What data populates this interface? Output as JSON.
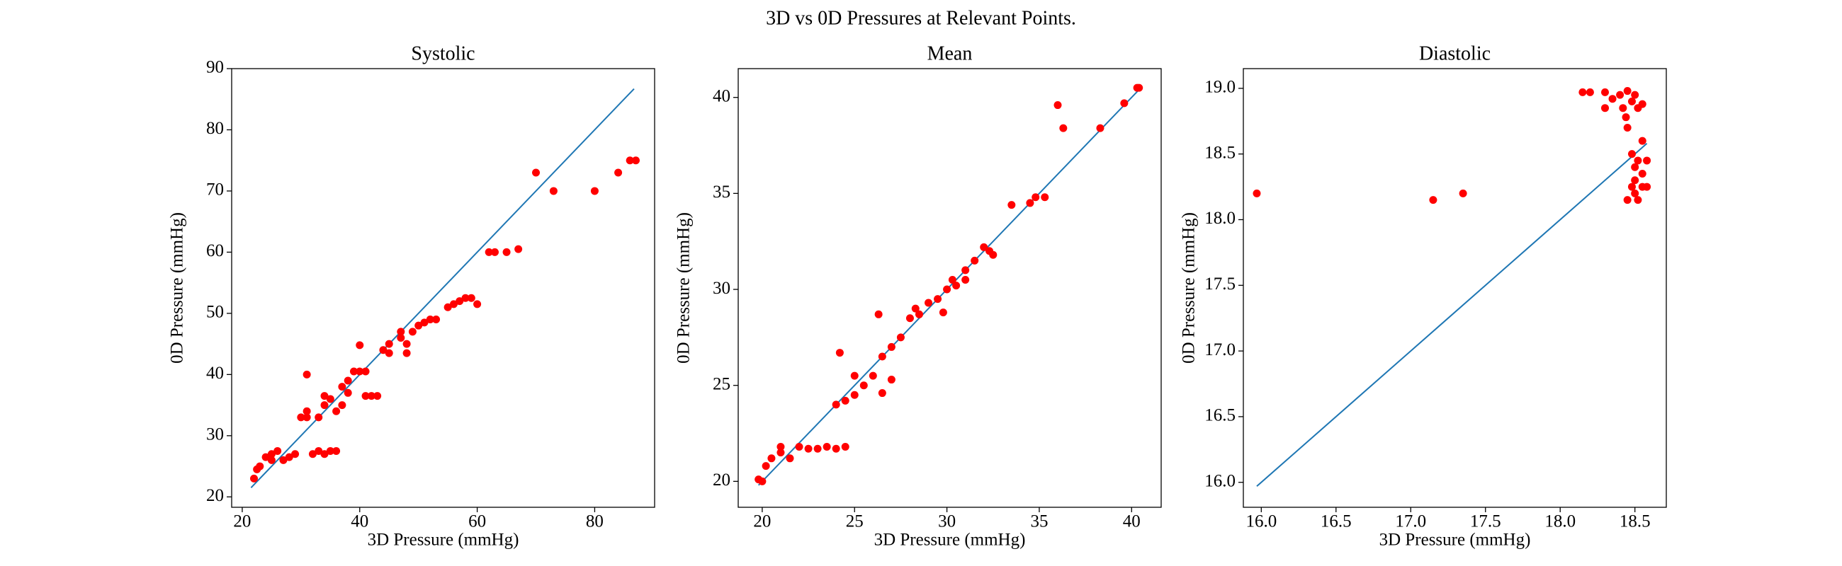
{
  "title": "3D vs 0D Pressures at Relevant Points.",
  "chart_data": [
    {
      "type": "scatter",
      "title": "Systolic",
      "x_label": "3D Pressure (mmHg)",
      "y_label": "0D Pressure (mmHg)",
      "xlim": [
        18.2,
        90.2
      ],
      "ylim": [
        18.3,
        90.0
      ],
      "xticks": [
        20,
        40,
        60,
        80
      ],
      "yticks": [
        20,
        30,
        40,
        50,
        60,
        70,
        80,
        90
      ],
      "points": {
        "color": "#ff0000",
        "x": [
          22,
          22.5,
          23,
          24,
          25,
          26,
          27,
          28,
          25,
          31,
          31,
          31,
          32,
          33,
          34,
          35,
          36,
          33,
          34,
          34,
          35,
          36,
          37,
          37,
          38,
          38,
          39,
          40,
          40,
          41,
          41,
          42,
          43,
          44,
          45,
          45,
          47,
          47,
          48,
          48,
          49,
          50,
          51,
          52,
          53,
          55,
          56,
          57,
          58,
          59,
          60,
          62,
          63,
          65,
          67,
          70,
          73,
          80,
          84,
          86,
          87,
          30,
          29
        ],
        "y": [
          23,
          24.5,
          25,
          26.5,
          27,
          27.5,
          26,
          26.5,
          26,
          40,
          33,
          34,
          27,
          27.5,
          27,
          27.5,
          27.5,
          33,
          35,
          36.5,
          36,
          34,
          35,
          38,
          39,
          37,
          40.5,
          44.8,
          40.5,
          40.5,
          36.5,
          36.5,
          36.5,
          44,
          45,
          43.5,
          46,
          47,
          45,
          43.5,
          47,
          48,
          48.5,
          49,
          49,
          51,
          51.5,
          52,
          52.5,
          52.5,
          51.5,
          60,
          60,
          60,
          60.5,
          73,
          70,
          70,
          73,
          75,
          75,
          33,
          27
        ]
      },
      "line": {
        "color": "#1f77b4",
        "x": [
          21.5,
          86.7
        ],
        "y": [
          21.5,
          86.7
        ]
      }
    },
    {
      "type": "scatter",
      "title": "Mean",
      "x_label": "3D Pressure (mmHg)",
      "y_label": "0D Pressure (mmHg)",
      "xlim": [
        18.7,
        41.6
      ],
      "ylim": [
        18.65,
        41.5
      ],
      "xticks": [
        20,
        25,
        30,
        35,
        40
      ],
      "yticks": [
        20,
        25,
        30,
        35,
        40
      ],
      "points": {
        "color": "#ff0000",
        "x": [
          19.8,
          20,
          20.2,
          20.5,
          21,
          21,
          21.5,
          22,
          22.5,
          23,
          23.5,
          24,
          24.5,
          24,
          24.2,
          24.5,
          25,
          25,
          25.5,
          26,
          26.3,
          26.5,
          26.5,
          27,
          27,
          27.5,
          28,
          28.3,
          28.5,
          29,
          29.5,
          29.8,
          30,
          30.3,
          30.5,
          31,
          31,
          31.5,
          32,
          32.3,
          32.5,
          33.5,
          34.5,
          34.8,
          35.3,
          36,
          36.3,
          38.3,
          39.6,
          40.3,
          40.4
        ],
        "y": [
          20.1,
          20,
          20.8,
          21.2,
          21.5,
          21.8,
          21.2,
          21.8,
          21.7,
          21.7,
          21.8,
          21.7,
          21.8,
          24,
          26.7,
          24.2,
          24.5,
          25.5,
          25,
          25.5,
          28.7,
          26.5,
          24.6,
          25.3,
          27,
          27.5,
          28.5,
          29,
          28.7,
          29.3,
          29.5,
          28.8,
          30,
          30.5,
          30.2,
          31,
          30.5,
          31.5,
          32.2,
          32,
          31.8,
          34.4,
          34.5,
          34.8,
          34.8,
          39.6,
          38.4,
          38.4,
          39.7,
          40.5,
          40.5
        ]
      },
      "line": {
        "color": "#1f77b4",
        "x": [
          19.8,
          40.4
        ],
        "y": [
          19.8,
          40.4
        ]
      }
    },
    {
      "type": "scatter",
      "title": "Diastolic",
      "x_label": "3D Pressure (mmHg)",
      "y_label": "0D Pressure (mmHg)",
      "xlim": [
        15.88,
        18.71
      ],
      "ylim": [
        15.81,
        19.15
      ],
      "xticks": [
        {
          "value": 16,
          "label": "16.0"
        },
        16.5,
        {
          "value": 17,
          "label": "17.0"
        },
        17.5,
        {
          "value": 18,
          "label": "18.0"
        },
        18.5
      ],
      "yticks": [
        {
          "value": 16,
          "label": "16.0"
        },
        16.5,
        {
          "value": 17,
          "label": "17.0"
        },
        17.5,
        {
          "value": 18,
          "label": "18.0"
        },
        18.5,
        {
          "value": 19,
          "label": "19.0"
        }
      ],
      "points": {
        "color": "#ff0000",
        "x": [
          15.97,
          17.15,
          17.35,
          18.15,
          18.2,
          18.3,
          18.35,
          18.4,
          18.42,
          18.45,
          18.45,
          18.48,
          18.5,
          18.52,
          18.55,
          18.48,
          18.5,
          18.52,
          18.55,
          18.55,
          18.58,
          18.5,
          18.45,
          18.48,
          18.5,
          18.55,
          18.58,
          18.52,
          18.3,
          18.44
        ],
        "y": [
          18.2,
          18.15,
          18.2,
          18.97,
          18.97,
          18.97,
          18.92,
          18.95,
          18.85,
          18.98,
          18.7,
          18.9,
          18.95,
          18.85,
          18.88,
          18.5,
          18.4,
          18.45,
          18.6,
          18.35,
          18.45,
          18.3,
          18.15,
          18.25,
          18.2,
          18.25,
          18.25,
          18.15,
          18.85,
          18.78
        ]
      },
      "line": {
        "color": "#1f77b4",
        "x": [
          15.97,
          18.58
        ],
        "y": [
          15.97,
          18.58
        ]
      }
    }
  ]
}
